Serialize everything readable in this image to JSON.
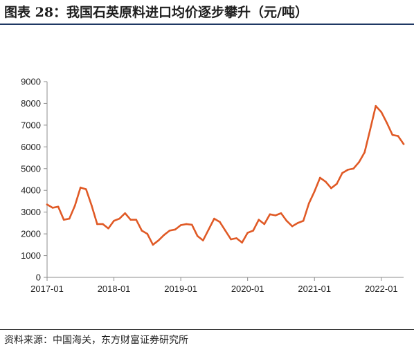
{
  "figure": {
    "title": "图表 28：我国石英原料进口均价逐步攀升（元/吨）",
    "source": "资料来源：中国海关，东方财富证券研究所"
  },
  "chart_data": {
    "type": "line",
    "title": "",
    "xlabel": "",
    "ylabel": "",
    "ylim": [
      0,
      9000
    ],
    "yticks": [
      0,
      1000,
      2000,
      3000,
      4000,
      5000,
      6000,
      7000,
      8000,
      9000
    ],
    "ytick_labels": [
      "0",
      "1000",
      "2000",
      "3000",
      "4000",
      "5000",
      "6000",
      "7000",
      "8000",
      "9000"
    ],
    "xticks": [
      "2017-01",
      "2018-01",
      "2019-01",
      "2020-01",
      "2021-01",
      "2022-01"
    ],
    "grid": false,
    "legend": "none",
    "line_color": "#e05a26",
    "x": [
      "2017-01",
      "2017-02",
      "2017-03",
      "2017-04",
      "2017-05",
      "2017-06",
      "2017-07",
      "2017-08",
      "2017-09",
      "2017-10",
      "2017-11",
      "2017-12",
      "2018-01",
      "2018-02",
      "2018-03",
      "2018-04",
      "2018-05",
      "2018-06",
      "2018-07",
      "2018-08",
      "2018-09",
      "2018-10",
      "2018-11",
      "2018-12",
      "2019-01",
      "2019-02",
      "2019-03",
      "2019-04",
      "2019-05",
      "2019-06",
      "2019-07",
      "2019-08",
      "2019-09",
      "2019-10",
      "2019-11",
      "2019-12",
      "2020-01",
      "2020-02",
      "2020-03",
      "2020-04",
      "2020-05",
      "2020-06",
      "2020-07",
      "2020-08",
      "2020-09",
      "2020-10",
      "2020-11",
      "2020-12",
      "2021-01",
      "2021-02",
      "2021-03",
      "2021-04",
      "2021-05",
      "2021-06",
      "2021-07",
      "2021-08",
      "2021-09",
      "2021-10",
      "2021-11",
      "2021-12",
      "2022-01",
      "2022-02",
      "2022-03",
      "2022-04",
      "2022-05"
    ],
    "values": [
      3350,
      3200,
      3250,
      2650,
      2700,
      3300,
      4130,
      4050,
      3300,
      2450,
      2450,
      2250,
      2600,
      2700,
      2950,
      2650,
      2650,
      2150,
      2000,
      1500,
      1700,
      1950,
      2150,
      2200,
      2400,
      2450,
      2420,
      1900,
      1700,
      2200,
      2700,
      2550,
      2150,
      1750,
      1800,
      1600,
      2050,
      2150,
      2650,
      2450,
      2900,
      2850,
      2950,
      2600,
      2350,
      2500,
      2600,
      3400,
      3950,
      4580,
      4400,
      4100,
      4300,
      4800,
      4950,
      5000,
      5300,
      5750,
      6800,
      7880,
      7600,
      7100,
      6550,
      6500,
      6130
    ]
  }
}
